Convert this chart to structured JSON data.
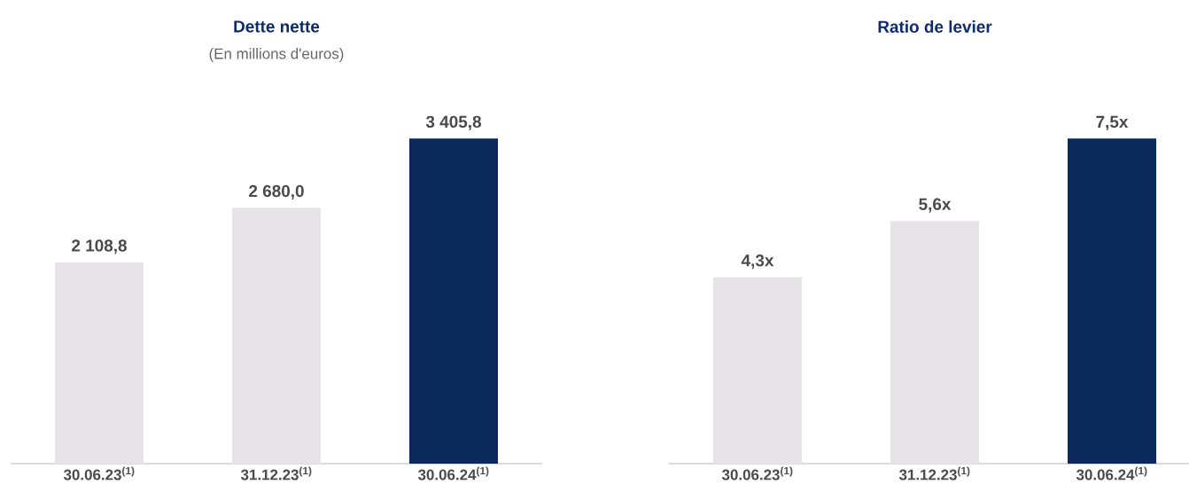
{
  "chart_data": [
    {
      "type": "bar",
      "title": "Dette nette",
      "subtitle": "(En millions d'euros)",
      "categories": [
        "30.06.23$^{(1)}$",
        "31.12.23$^{(1)}$",
        "30.06.24$^{(1)}$"
      ],
      "values": [
        2108.8,
        2680.0,
        3405.8
      ],
      "colors": [
        "#e6e4e6",
        "#e6e4e6",
        "#0b2a5b"
      ],
      "value_labels": [
        "2 108,8",
        "2 680,0",
        "3 405,8"
      ]
    },
    {
      "type": "bar",
      "title": "Ratio de levier",
      "categories": [
        "30.06.23$^{(1)}$",
        "31.12.23$^{(1)}$",
        "30.06.24$^{(1)}$"
      ],
      "values": [
        4.3,
        5.6,
        7.5
      ],
      "colors": [
        "#e6e4e6",
        "#e6e4e6",
        "#0b2a5b"
      ],
      "value_labels": [
        "4,3x",
        "5,6x",
        "7,5x"
      ]
    }
  ]
}
